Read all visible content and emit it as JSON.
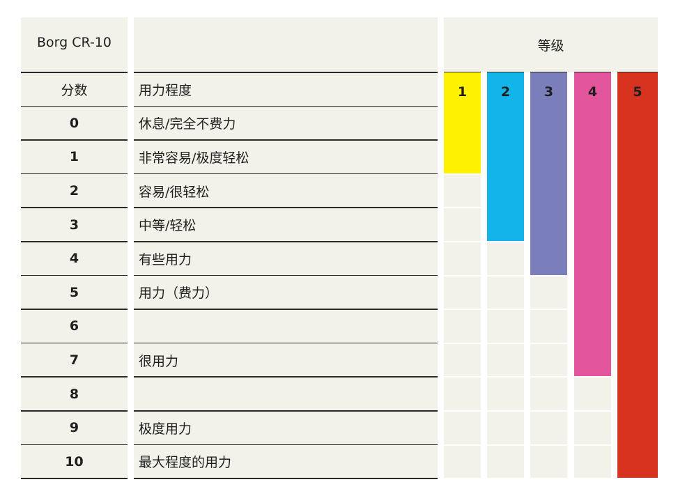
{
  "table": {
    "corner_label": "Borg CR-10",
    "levels_header": "等级",
    "score_header": "分数",
    "effort_header": "用力程度",
    "rows": [
      {
        "score": "0",
        "effort": "休息/完全不费力"
      },
      {
        "score": "1",
        "effort": "非常容易/极度轻松"
      },
      {
        "score": "2",
        "effort": "容易/很轻松"
      },
      {
        "score": "3",
        "effort": "中等/轻松"
      },
      {
        "score": "4",
        "effort": "有些用力"
      },
      {
        "score": "5",
        "effort": "用力（费力）"
      },
      {
        "score": "6",
        "effort": ""
      },
      {
        "score": "7",
        "effort": "很用力"
      },
      {
        "score": "8",
        "effort": ""
      },
      {
        "score": "9",
        "effort": "极度用力"
      },
      {
        "score": "10",
        "effort": "最大程度的用力"
      }
    ],
    "levels": [
      {
        "label": "1",
        "color": "#fff200",
        "label_color": "#1f1f1f",
        "covers_score_up_to": 1
      },
      {
        "label": "2",
        "color": "#12b4ea",
        "label_color": "#1f1f1f",
        "covers_score_up_to": 3
      },
      {
        "label": "3",
        "color": "#7a7fbc",
        "label_color": "#1f1f1f",
        "covers_score_up_to": 4
      },
      {
        "label": "4",
        "color": "#e2549b",
        "label_color": "#1f1f1f",
        "covers_score_up_to": 7
      },
      {
        "label": "5",
        "color": "#d8331f",
        "label_color": "#1f1f1f",
        "covers_score_up_to": 10
      }
    ]
  }
}
